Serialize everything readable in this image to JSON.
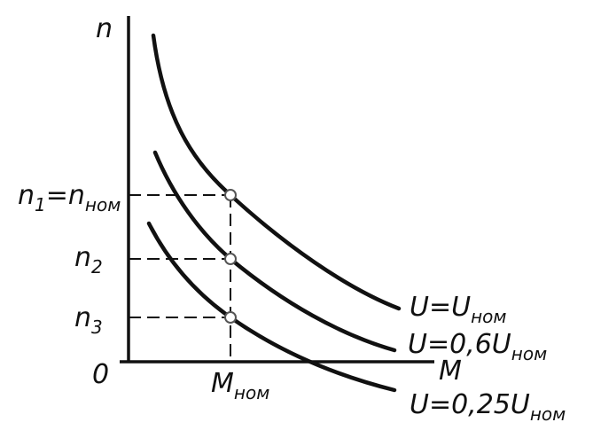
{
  "axes": {
    "y": [
      "n"
    ],
    "x": [
      "M"
    ],
    "origin": [
      "0"
    ]
  },
  "levels": {
    "n1": [
      "n",
      "1",
      "=n",
      "ном"
    ],
    "n2": [
      "n",
      "2"
    ],
    "n3": [
      "n",
      "3"
    ],
    "m_nom": [
      "M",
      "ном"
    ]
  },
  "curves": [
    [
      "U=U",
      "ном"
    ],
    [
      "U=0,6U",
      "ном"
    ],
    [
      "U=0,25U",
      "ном"
    ]
  ]
}
